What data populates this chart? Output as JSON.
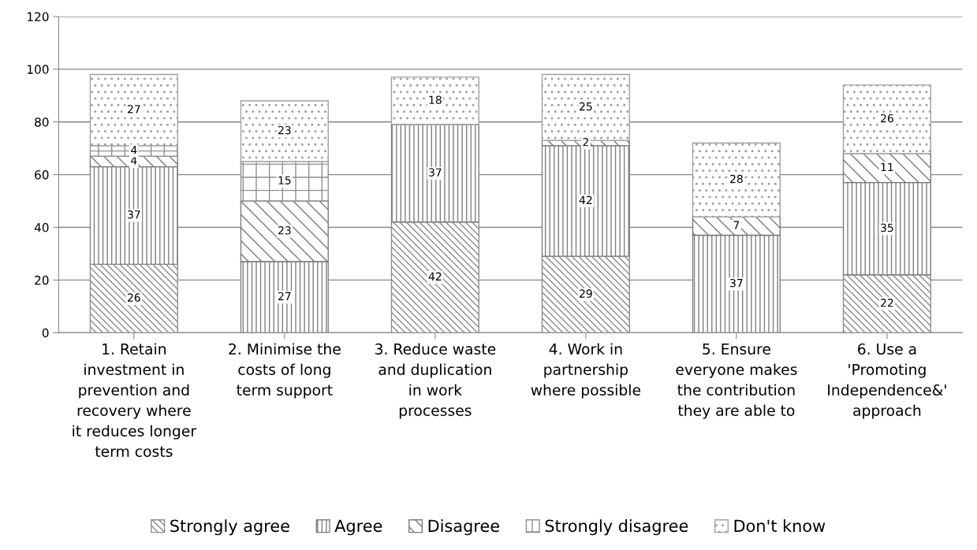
{
  "chart_data": {
    "type": "bar",
    "stacked": true,
    "categories": [
      "1. Retain\ninvestment in\nprevention and\nrecovery where\nit reduces longer\nterm costs",
      "2. Minimise the\ncosts of long\nterm support",
      "3. Reduce waste\nand duplication\nin work\nprocesses",
      "4. Work in\npartnership\nwhere possible",
      "5. Ensure\neveryone makes\nthe contribution\nthey are able to",
      "6. Use a\n'Promoting\nIndependence&'\napproach"
    ],
    "series": [
      {
        "name": "Strongly agree",
        "color": "#8c8c8c",
        "values": [
          26,
          null,
          42,
          29,
          null,
          22
        ]
      },
      {
        "name": "Agree",
        "color": "#808080",
        "values": [
          37,
          27,
          37,
          42,
          37,
          35
        ]
      },
      {
        "name": "Disagree",
        "color": "#7a7a7a",
        "values": [
          4,
          23,
          null,
          2,
          7,
          11
        ]
      },
      {
        "name": "Strongly disagree",
        "color": "#909090",
        "values": [
          4,
          15,
          null,
          null,
          null,
          null
        ]
      },
      {
        "name": "Don't know",
        "color": "#a0a0a0",
        "values": [
          27,
          23,
          18,
          25,
          28,
          26
        ]
      }
    ],
    "ylim": [
      0,
      120
    ],
    "yticks": [
      0,
      20,
      40,
      60,
      80,
      100,
      120
    ],
    "grid": "y",
    "legend": "bottom",
    "data_labels": true
  }
}
